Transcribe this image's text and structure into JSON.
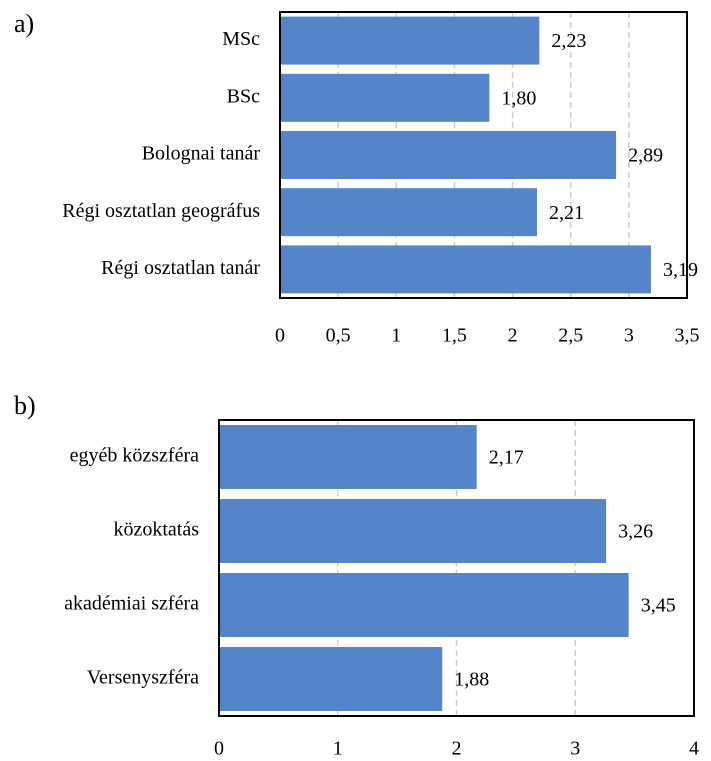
{
  "chart_data": [
    {
      "type": "bar",
      "orientation": "horizontal",
      "label": "a)",
      "categories": [
        "MSc",
        "BSc",
        "Bolognai tanár",
        "Régi osztatlan geográfus",
        "Régi osztatlan tanár"
      ],
      "values": [
        2.23,
        1.8,
        2.89,
        2.21,
        3.19
      ],
      "value_labels": [
        "2,23",
        "1,80",
        "2,89",
        "2,21",
        "3,19"
      ],
      "color": "#5585c8",
      "xlim": [
        0,
        3.5
      ],
      "xticks": [
        0,
        {
          "value": 0.5,
          "label": "0,5"
        },
        1,
        {
          "value": 1.5,
          "label": "1,5"
        },
        2,
        {
          "value": 2.5,
          "label": "2,5"
        },
        3,
        {
          "value": 3.5,
          "label": "3,5"
        }
      ],
      "grid": true
    },
    {
      "type": "bar",
      "orientation": "horizontal",
      "label": "b)",
      "categories": [
        "egyéb közszféra",
        "közoktatás",
        "akadémiai szféra",
        "Versenyszféra"
      ],
      "values": [
        2.17,
        3.26,
        3.45,
        1.88
      ],
      "value_labels": [
        "2,17",
        "3,26",
        "3,45",
        "1,88"
      ],
      "color": "#5585c8",
      "xlim": [
        0,
        4
      ],
      "xticks": [
        0,
        1,
        2,
        3,
        4
      ],
      "grid": true
    }
  ]
}
